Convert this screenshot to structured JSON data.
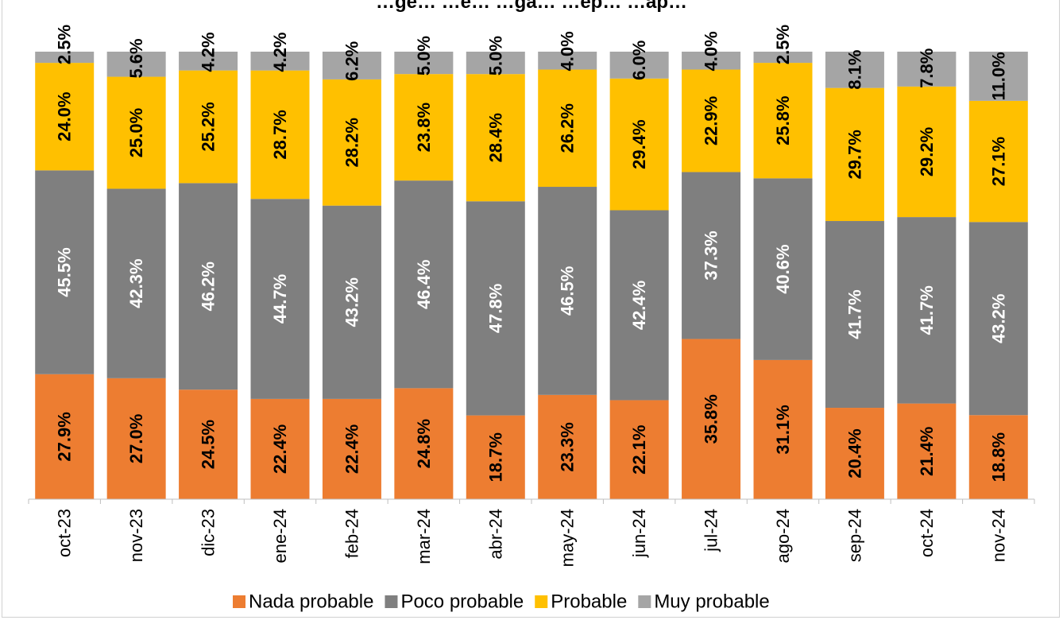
{
  "chart_data": {
    "type": "bar",
    "stacked": true,
    "normalized": true,
    "title_partial": "…ge… …e… …ga… …ep… …ap…",
    "categories": [
      "oct-23",
      "nov-23",
      "dic-23",
      "ene-24",
      "feb-24",
      "mar-24",
      "abr-24",
      "may-24",
      "jun-24",
      "jul-24",
      "ago-24",
      "sep-24",
      "oct-24",
      "nov-24"
    ],
    "series": [
      {
        "name": "Nada probable",
        "color": "#ED7D31",
        "label_color": "#000000",
        "values": [
          27.9,
          27.0,
          24.5,
          22.4,
          22.4,
          24.8,
          18.7,
          23.3,
          22.1,
          35.8,
          31.1,
          20.4,
          21.4,
          18.8
        ]
      },
      {
        "name": "Poco probable",
        "color": "#7F7F7F",
        "label_color": "#ffffff",
        "values": [
          45.5,
          42.3,
          46.2,
          44.7,
          43.2,
          46.4,
          47.8,
          46.5,
          42.4,
          37.3,
          40.6,
          41.7,
          41.7,
          43.2
        ]
      },
      {
        "name": "Probable",
        "color": "#FFC000",
        "label_color": "#000000",
        "values": [
          24.0,
          25.0,
          25.2,
          28.7,
          28.2,
          23.8,
          28.4,
          26.2,
          29.4,
          22.9,
          25.8,
          29.7,
          29.2,
          27.1
        ]
      },
      {
        "name": "Muy probable",
        "color": "#A5A5A5",
        "label_color": "#000000",
        "values": [
          2.5,
          5.6,
          4.2,
          4.2,
          6.2,
          5.0,
          5.0,
          4.0,
          6.0,
          4.0,
          2.5,
          8.1,
          7.8,
          11.0
        ]
      }
    ],
    "value_suffix": "%",
    "ylim": [
      0,
      100
    ],
    "grid": false,
    "legend_position": "bottom"
  }
}
